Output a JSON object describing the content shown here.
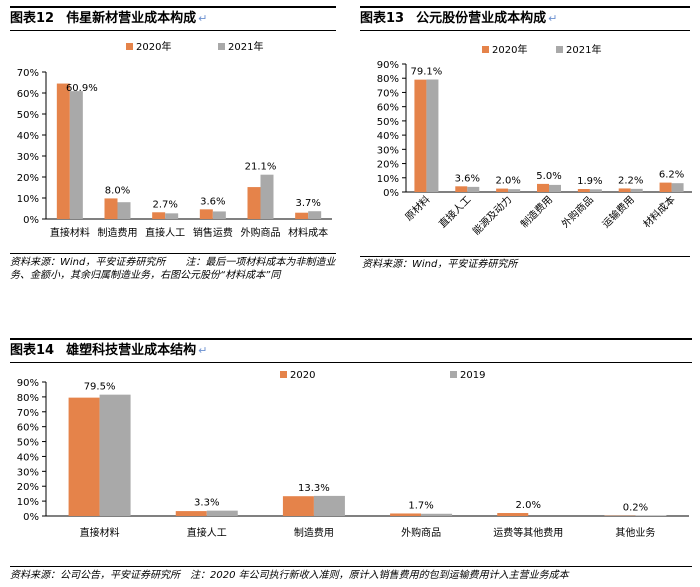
{
  "panels": [
    {
      "id": "p12",
      "fig_num": "图表12",
      "fig_title": "伟星新材营业成本构成",
      "source": "资料来源：Wind，平安证券研究所　　注：最后一项材料成本为非制造业务、金额小，其余归属制造业务，右图公元股份“材料成本”同"
    },
    {
      "id": "p13",
      "fig_num": "图表13",
      "fig_title": "公元股份营业成本构成",
      "source": "资料来源：Wind，平安证券研究所"
    },
    {
      "id": "p14",
      "fig_num": "图表14",
      "fig_title": "雄塑科技营业成本结构",
      "source": "资料来源：公司公告，平安证券研究所　注：2020 年公司执行新收入准则，原计入销售费用的包到运输费用计入主营业务成本"
    }
  ],
  "chart_data": [
    {
      "panel": "p12",
      "type": "bar",
      "categories": [
        "直接材料",
        "制造费用",
        "直接人工",
        "销售运费",
        "外购商品",
        "材料成本"
      ],
      "series": [
        {
          "name": "2020年",
          "color": "#e5834a",
          "values": [
            64.5,
            9.8,
            3.2,
            4.6,
            15.2,
            3.0
          ]
        },
        {
          "name": "2021年",
          "color": "#a9a9a9",
          "values": [
            60.9,
            8.0,
            2.7,
            3.6,
            21.1,
            3.7
          ]
        }
      ],
      "data_labels": [
        "60.9%",
        "8.0%",
        "2.7%",
        "3.6%",
        "21.1%",
        "3.7%"
      ],
      "yticks": [
        "0%",
        "10%",
        "20%",
        "30%",
        "40%",
        "50%",
        "60%",
        "70%"
      ],
      "ylim": [
        0,
        70
      ],
      "legend": "top"
    },
    {
      "panel": "p13",
      "type": "bar",
      "categories": [
        "原材料",
        "直接人工",
        "能源及动力",
        "制造费用",
        "外购商品",
        "运输费用",
        "材料成本"
      ],
      "series": [
        {
          "name": "2020年",
          "color": "#e5834a",
          "values": [
            79.0,
            4.0,
            2.4,
            5.7,
            2.1,
            2.5,
            6.6
          ]
        },
        {
          "name": "2021年",
          "color": "#a9a9a9",
          "values": [
            79.1,
            3.6,
            2.0,
            5.0,
            1.9,
            2.2,
            6.2
          ]
        }
      ],
      "data_labels": [
        "79.1%",
        "3.6%",
        "2.0%",
        "5.0%",
        "1.9%",
        "2.2%",
        "6.2%"
      ],
      "yticks": [
        "0%",
        "10%",
        "20%",
        "30%",
        "40%",
        "50%",
        "60%",
        "70%",
        "80%",
        "90%"
      ],
      "ylim": [
        0,
        90
      ],
      "legend": "top"
    },
    {
      "panel": "p14",
      "type": "bar",
      "categories": [
        "直接材料",
        "直接人工",
        "制造费用",
        "外购商品",
        "运费等其他费用",
        "其他业务"
      ],
      "series": [
        {
          "name": "2020",
          "color": "#e5834a",
          "values": [
            79.5,
            3.3,
            13.3,
            1.7,
            2.0,
            0.2
          ]
        },
        {
          "name": "2019",
          "color": "#a9a9a9",
          "values": [
            81.5,
            3.6,
            13.5,
            1.5,
            0.0,
            0.3
          ]
        }
      ],
      "data_labels": [
        "79.5%",
        "3.3%",
        "13.3%",
        "1.7%",
        "2.0%",
        "0.2%"
      ],
      "yticks": [
        "0%",
        "10%",
        "20%",
        "30%",
        "40%",
        "50%",
        "60%",
        "70%",
        "80%",
        "90%"
      ],
      "ylim": [
        0,
        90
      ],
      "legend": "top"
    }
  ]
}
